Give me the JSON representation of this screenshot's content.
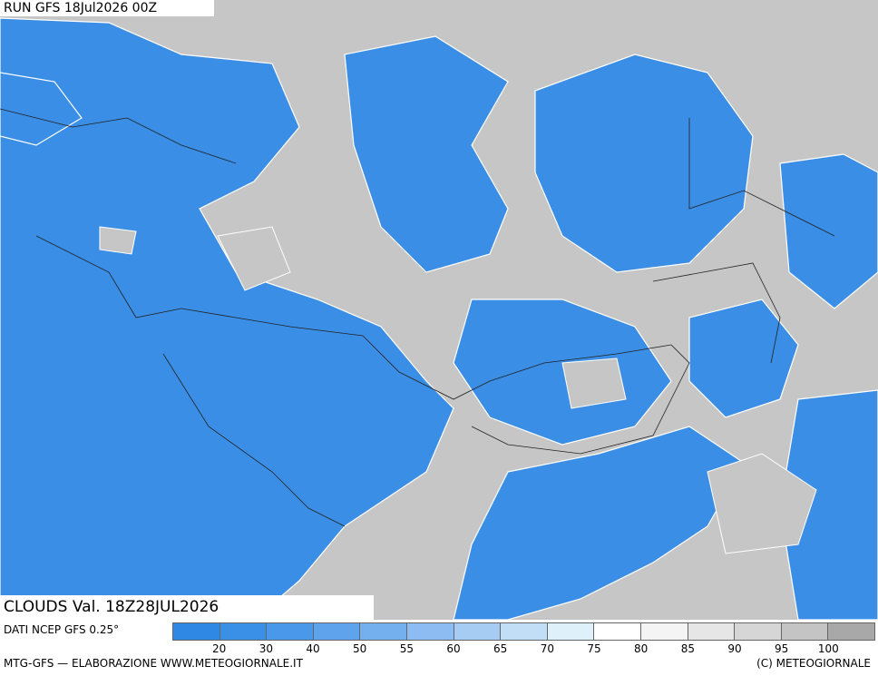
{
  "header": {
    "run": "RUN GFS 18Jul2026 00Z",
    "field": "CLOUDS Val. 18Z28JUL2026"
  },
  "legend": {
    "source": "DATI NCEP GFS 0.25°",
    "colors": [
      "#2e88e4",
      "#3a8fe6",
      "#4a98e9",
      "#5ea3ec",
      "#74afee",
      "#8cbcf1",
      "#a6ccf4",
      "#c2def7",
      "#def1fa",
      "#ffffff",
      "#f4f4f4",
      "#e6e6e6",
      "#d6d6d6",
      "#c4c4c4",
      "#a8a8a8"
    ],
    "labels": [
      20,
      30,
      40,
      50,
      55,
      60,
      65,
      70,
      75,
      80,
      85,
      90,
      95,
      100
    ]
  },
  "footer": {
    "left": "MTG-GFS — ELABORAZIONE WWW.METEOGIORNALE.IT",
    "right": "(C) METEOGIORNALE"
  }
}
